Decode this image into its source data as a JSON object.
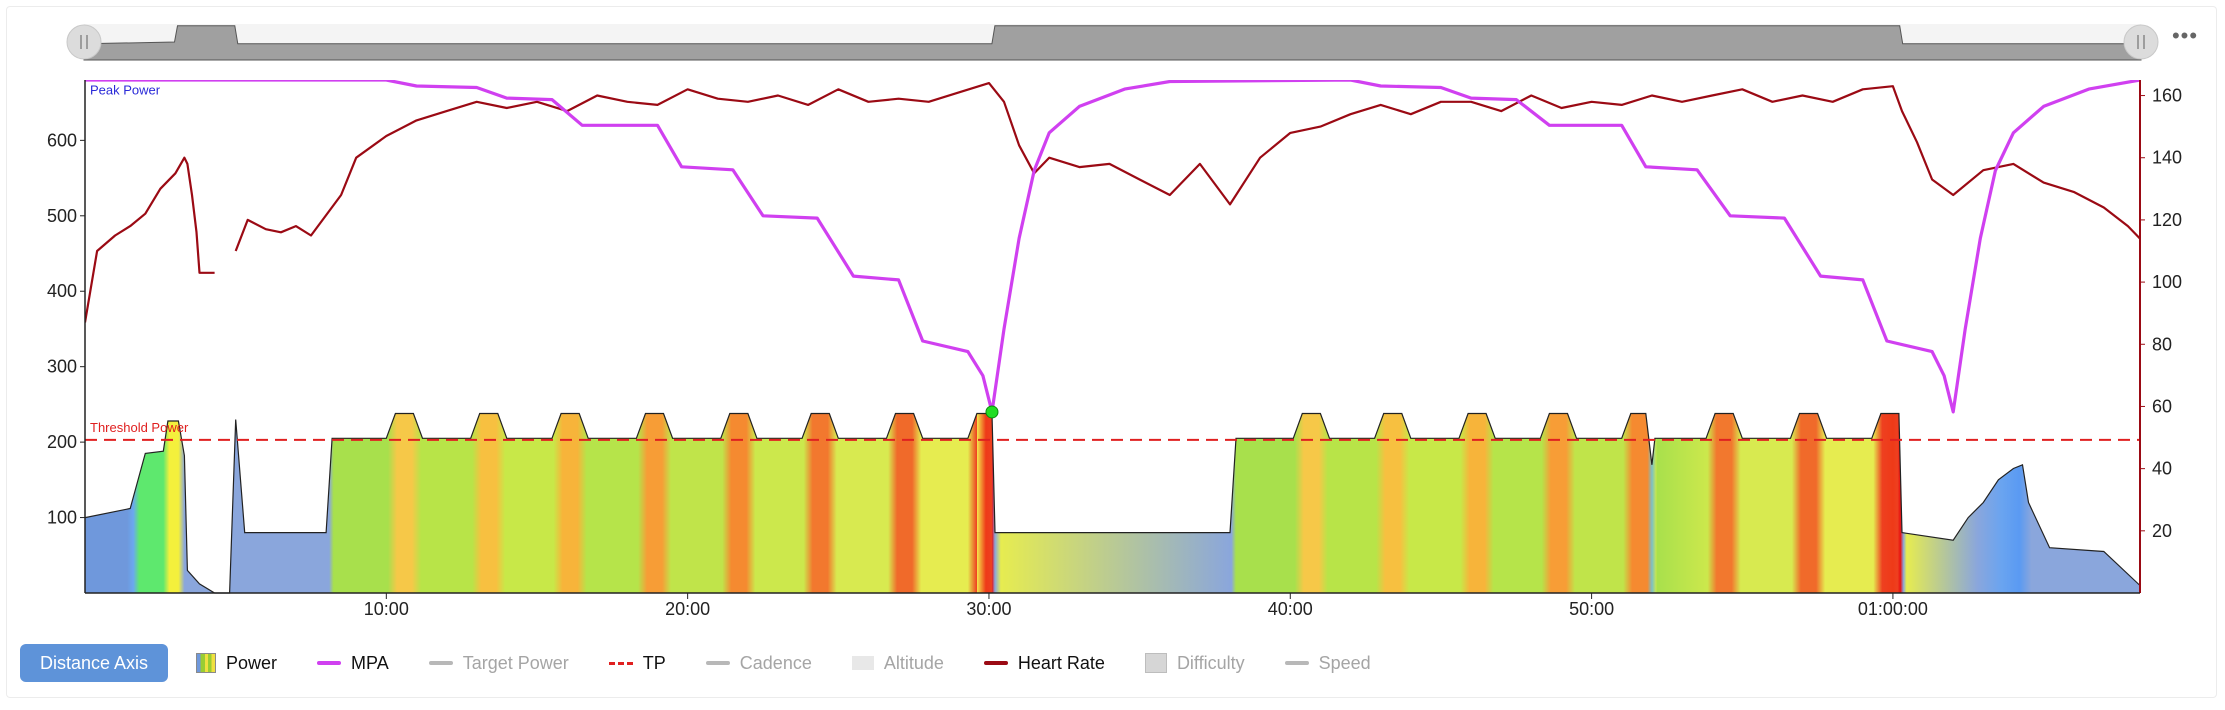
{
  "chart_data": {
    "type": "line",
    "x_unit": "elapsed time (h:mm:ss)",
    "x_ticks": [
      "10:00",
      "20:00",
      "30:00",
      "40:00",
      "50:00",
      "01:00:00"
    ],
    "x_range_min": [
      0,
      68.2
    ],
    "y_left_ticks": [
      "100",
      "200",
      "300",
      "400",
      "500",
      "600"
    ],
    "y_left_range": [
      0,
      680
    ],
    "y_right_ticks": [
      "20",
      "40",
      "60",
      "80",
      "100",
      "120",
      "140",
      "160"
    ],
    "y_right_range": [
      0,
      165
    ],
    "annotations": {
      "peak_power_label": "Peak Power",
      "peak_power_value": 682,
      "threshold_label": "Threshold Power",
      "threshold_value": 203
    },
    "series": [
      {
        "name": "Power",
        "axis": "left",
        "points": [
          [
            0,
            100
          ],
          [
            1.5,
            112
          ],
          [
            2,
            185
          ],
          [
            2.6,
            188
          ],
          [
            2.75,
            228
          ],
          [
            3.1,
            228
          ],
          [
            3.3,
            182
          ],
          [
            3.4,
            30
          ],
          [
            3.8,
            12
          ],
          [
            4.3,
            0
          ],
          [
            4.8,
            0
          ],
          [
            5,
            230
          ],
          [
            5.3,
            80
          ],
          [
            6,
            80
          ],
          [
            8,
            80
          ],
          [
            8.2,
            205
          ],
          [
            10,
            205
          ],
          [
            10.3,
            238
          ],
          [
            10.9,
            238
          ],
          [
            11.2,
            205
          ],
          [
            12.8,
            205
          ],
          [
            13.1,
            238
          ],
          [
            13.7,
            238
          ],
          [
            14,
            205
          ],
          [
            15.5,
            205
          ],
          [
            15.8,
            238
          ],
          [
            16.4,
            238
          ],
          [
            16.7,
            205
          ],
          [
            18.3,
            205
          ],
          [
            18.6,
            238
          ],
          [
            19.2,
            238
          ],
          [
            19.5,
            205
          ],
          [
            21.1,
            205
          ],
          [
            21.4,
            238
          ],
          [
            22,
            238
          ],
          [
            22.3,
            205
          ],
          [
            23.8,
            205
          ],
          [
            24.1,
            238
          ],
          [
            24.7,
            238
          ],
          [
            25,
            205
          ],
          [
            26.6,
            205
          ],
          [
            26.9,
            238
          ],
          [
            27.5,
            238
          ],
          [
            27.8,
            205
          ],
          [
            29.3,
            205
          ],
          [
            29.6,
            238
          ],
          [
            30.1,
            238
          ],
          [
            30.2,
            80
          ],
          [
            38,
            80
          ],
          [
            38.2,
            205
          ],
          [
            40.1,
            205
          ],
          [
            40.4,
            238
          ],
          [
            41,
            238
          ],
          [
            41.3,
            205
          ],
          [
            42.8,
            205
          ],
          [
            43.1,
            238
          ],
          [
            43.7,
            238
          ],
          [
            44,
            205
          ],
          [
            45.6,
            205
          ],
          [
            45.9,
            238
          ],
          [
            46.5,
            238
          ],
          [
            46.8,
            205
          ],
          [
            48.3,
            205
          ],
          [
            48.6,
            238
          ],
          [
            49.2,
            238
          ],
          [
            49.5,
            205
          ],
          [
            51,
            205
          ],
          [
            51.3,
            238
          ],
          [
            51.8,
            238
          ],
          [
            52,
            170
          ],
          [
            52.1,
            205
          ],
          [
            53.8,
            205
          ],
          [
            54.1,
            238
          ],
          [
            54.7,
            238
          ],
          [
            55,
            205
          ],
          [
            56.6,
            205
          ],
          [
            56.9,
            238
          ],
          [
            57.5,
            238
          ],
          [
            57.8,
            205
          ],
          [
            59.3,
            205
          ],
          [
            59.6,
            238
          ],
          [
            60.2,
            238
          ],
          [
            60.3,
            80
          ],
          [
            62,
            70
          ],
          [
            62.5,
            100
          ],
          [
            63,
            120
          ],
          [
            63.5,
            150
          ],
          [
            64,
            165
          ],
          [
            64.3,
            170
          ],
          [
            64.5,
            120
          ],
          [
            65.2,
            60
          ],
          [
            67,
            55
          ],
          [
            68.2,
            10
          ]
        ]
      },
      {
        "name": "MPA",
        "axis": "left",
        "points": [
          [
            0,
            680
          ],
          [
            10,
            680
          ],
          [
            11,
            672
          ],
          [
            13,
            670
          ],
          [
            14,
            656
          ],
          [
            15.5,
            654
          ],
          [
            16.5,
            620
          ],
          [
            19,
            620
          ],
          [
            19.8,
            565
          ],
          [
            21.5,
            561
          ],
          [
            22.5,
            500
          ],
          [
            24.3,
            497
          ],
          [
            25.5,
            420
          ],
          [
            27,
            415
          ],
          [
            27.8,
            334
          ],
          [
            29.3,
            320
          ],
          [
            29.8,
            288
          ],
          [
            30.1,
            240
          ],
          [
            30.5,
            350
          ],
          [
            31,
            470
          ],
          [
            31.5,
            560
          ],
          [
            32,
            610
          ],
          [
            33,
            645
          ],
          [
            34.5,
            668
          ],
          [
            36,
            678
          ],
          [
            42,
            680
          ],
          [
            43,
            672
          ],
          [
            45,
            670
          ],
          [
            46,
            656
          ],
          [
            47.5,
            654
          ],
          [
            48.6,
            620
          ],
          [
            51,
            620
          ],
          [
            51.8,
            565
          ],
          [
            53.5,
            561
          ],
          [
            54.6,
            500
          ],
          [
            56.4,
            497
          ],
          [
            57.6,
            420
          ],
          [
            59,
            415
          ],
          [
            59.8,
            334
          ],
          [
            61.3,
            320
          ],
          [
            61.7,
            288
          ],
          [
            62,
            240
          ],
          [
            62.4,
            350
          ],
          [
            62.9,
            470
          ],
          [
            63.4,
            560
          ],
          [
            64,
            610
          ],
          [
            65,
            645
          ],
          [
            66.5,
            668
          ],
          [
            68.2,
            680
          ]
        ]
      },
      {
        "name": "Heart Rate",
        "axis": "right",
        "points": [
          [
            0,
            87
          ],
          [
            0.4,
            110
          ],
          [
            1,
            115
          ],
          [
            1.5,
            118
          ],
          [
            2,
            122
          ],
          [
            2.5,
            130
          ],
          [
            3,
            135
          ],
          [
            3.3,
            140
          ],
          [
            3.4,
            138
          ],
          [
            3.55,
            128
          ],
          [
            3.7,
            116
          ],
          [
            3.8,
            103
          ],
          [
            4.0,
            103
          ],
          [
            4.3,
            103
          ],
          [
            null,
            null
          ],
          [
            5,
            110
          ],
          [
            5.4,
            120
          ],
          [
            6,
            117
          ],
          [
            6.5,
            116
          ],
          [
            7,
            118
          ],
          [
            7.5,
            115
          ],
          [
            8.5,
            128
          ],
          [
            9,
            140
          ],
          [
            10,
            147
          ],
          [
            11,
            152
          ],
          [
            12,
            155
          ],
          [
            13,
            158
          ],
          [
            14,
            156
          ],
          [
            15,
            158
          ],
          [
            16,
            155
          ],
          [
            17,
            160
          ],
          [
            18,
            158
          ],
          [
            19,
            157
          ],
          [
            20,
            162
          ],
          [
            21,
            159
          ],
          [
            22,
            158
          ],
          [
            23,
            160
          ],
          [
            24,
            157
          ],
          [
            25,
            162
          ],
          [
            26,
            158
          ],
          [
            27,
            159
          ],
          [
            28,
            158
          ],
          [
            29,
            161
          ],
          [
            30,
            164
          ],
          [
            30.5,
            158
          ],
          [
            31,
            144
          ],
          [
            31.5,
            135
          ],
          [
            32,
            140
          ],
          [
            33,
            137
          ],
          [
            34,
            138
          ],
          [
            35,
            133
          ],
          [
            36,
            128
          ],
          [
            37,
            138
          ],
          [
            38,
            125
          ],
          [
            39,
            140
          ],
          [
            40,
            148
          ],
          [
            41,
            150
          ],
          [
            42,
            154
          ],
          [
            43,
            157
          ],
          [
            44,
            154
          ],
          [
            45,
            158
          ],
          [
            46,
            158
          ],
          [
            47,
            155
          ],
          [
            48,
            160
          ],
          [
            49,
            156
          ],
          [
            50,
            158
          ],
          [
            51,
            157
          ],
          [
            52,
            160
          ],
          [
            53,
            158
          ],
          [
            54,
            160
          ],
          [
            55,
            162
          ],
          [
            56,
            158
          ],
          [
            57,
            160
          ],
          [
            58,
            158
          ],
          [
            59,
            162
          ],
          [
            60,
            163
          ],
          [
            60.3,
            155
          ],
          [
            60.8,
            145
          ],
          [
            61.3,
            133
          ],
          [
            62,
            128
          ],
          [
            63,
            136
          ],
          [
            64,
            138
          ],
          [
            65,
            132
          ],
          [
            66,
            129
          ],
          [
            67,
            124
          ],
          [
            67.8,
            118
          ],
          [
            68.2,
            114
          ]
        ]
      },
      {
        "name": "Target Power",
        "axis": "left",
        "points": []
      },
      {
        "name": "TP",
        "axis": "left",
        "points": [
          [
            0,
            203
          ],
          [
            68.2,
            203
          ]
        ]
      }
    ],
    "navigator_profile": [
      [
        0,
        0.45
      ],
      [
        3,
        0.5
      ],
      [
        3.1,
        0.95
      ],
      [
        5,
        0.95
      ],
      [
        5.1,
        0.45
      ],
      [
        30.1,
        0.45
      ],
      [
        30.2,
        0.95
      ],
      [
        60.2,
        0.95
      ],
      [
        60.3,
        0.45
      ],
      [
        68.2,
        0.45
      ]
    ]
  },
  "legend": {
    "distance_axis_label": "Distance Axis",
    "items": [
      {
        "label": "Power",
        "active": true,
        "swatch": "power",
        "color": "#9acd32"
      },
      {
        "label": "MPA",
        "active": true,
        "swatch": "line",
        "color": "#d040f0"
      },
      {
        "label": "Target Power",
        "active": false,
        "swatch": "line",
        "color": "#b8b8b8"
      },
      {
        "label": "TP",
        "active": true,
        "swatch": "dash",
        "color": "#e02020"
      },
      {
        "label": "Cadence",
        "active": false,
        "swatch": "line",
        "color": "#b8b8b8"
      },
      {
        "label": "Altitude",
        "active": false,
        "swatch": "fill",
        "color": "#e8e8e8"
      },
      {
        "label": "Heart Rate",
        "active": true,
        "swatch": "line",
        "color": "#9b0a14"
      },
      {
        "label": "Difficulty",
        "active": false,
        "swatch": "box",
        "color": "#d6d6d6"
      },
      {
        "label": "Speed",
        "active": false,
        "swatch": "line",
        "color": "#b8b8b8"
      }
    ]
  },
  "colors": {
    "hr_axis": "#9b0a14",
    "mpa": "#d040f0",
    "threshold": "#e02020",
    "peak": "#2a2ad8",
    "navigator_fill": "#a0a0a0",
    "marker": "#22dd22"
  },
  "more_icon": "more-horizontal-icon"
}
